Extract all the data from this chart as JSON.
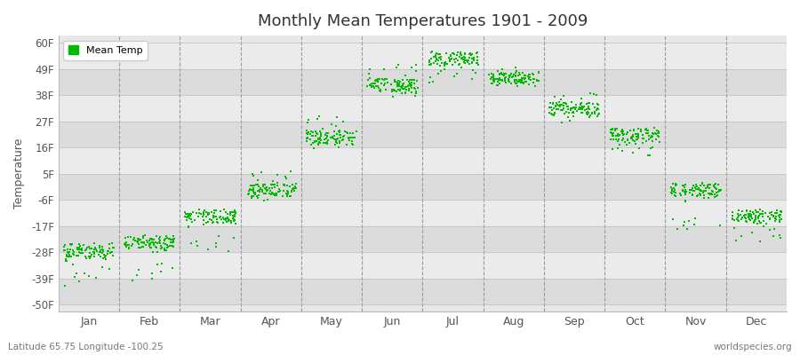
{
  "title": "Monthly Mean Temperatures 1901 - 2009",
  "ylabel": "Temperature",
  "subtitle": "Latitude 65.75 Longitude -100.25",
  "watermark": "worldspecies.org",
  "ytick_labels": [
    "60F",
    "49F",
    "38F",
    "27F",
    "16F",
    "5F",
    "-6F",
    "-17F",
    "-28F",
    "-39F",
    "-50F"
  ],
  "ytick_values": [
    60,
    49,
    38,
    27,
    16,
    5,
    -6,
    -17,
    -28,
    -39,
    -50
  ],
  "ylim": [
    -53,
    63
  ],
  "xlim": [
    0,
    12
  ],
  "months": [
    "Jan",
    "Feb",
    "Mar",
    "Apr",
    "May",
    "Jun",
    "Jul",
    "Aug",
    "Sep",
    "Oct",
    "Nov",
    "Dec"
  ],
  "dot_color": "#00BB00",
  "dot_size": 4,
  "background_color": "#FFFFFF",
  "plot_bg_color": "#E8E8E8",
  "band_color_light": "#EBEBEB",
  "band_color_dark": "#DCDCDC",
  "legend_color": "#00BB00",
  "mean_temps_C": {
    "Jan": [
      -33.3,
      -31.1,
      -32.8,
      -33.9,
      -31.7,
      -34.4,
      -35.6,
      -33.3,
      -31.1,
      -32.5,
      -32.0,
      -34.2,
      -35.0,
      -33.3,
      -36.1,
      -32.8,
      -31.4,
      -33.6,
      -34.4,
      -33.9,
      -33.3,
      -31.4,
      -32.2,
      -32.8,
      -34.7,
      -33.3,
      -33.9,
      -32.5,
      -33.3,
      -35.0,
      -32.8,
      -31.7,
      -33.9,
      -33.3,
      -32.2,
      -34.4,
      -32.5,
      -33.6,
      -33.9,
      -32.5,
      -33.3,
      -34.4,
      -32.8,
      -31.4,
      -34.2,
      -33.3,
      -32.2,
      -34.7,
      -32.5,
      -33.6,
      -34.2,
      -32.8,
      -33.3,
      -32.5,
      -34.4,
      -33.3,
      -32.8,
      -33.9,
      -35.3,
      -33.3,
      -31.7,
      -32.8,
      -33.9,
      -33.6,
      -32.2,
      -34.4,
      -32.5,
      -33.9,
      -33.3,
      -32.5,
      -34.7,
      -33.3,
      -32.8,
      -34.2,
      -31.9,
      -33.3,
      -32.2,
      -34.4,
      -32.5,
      -33.9,
      -33.6,
      -32.2,
      -32.8,
      -34.4,
      -33.3,
      -31.9,
      -34.2,
      -32.8,
      -33.3,
      -32.5,
      -34.4,
      -33.3,
      -32.5,
      -33.9,
      -33.6,
      -32.2,
      -34.7,
      -32.8,
      -31.7,
      -33.3,
      -41.1,
      -39.4,
      -40.3,
      -38.9,
      -37.2,
      -38.3,
      -38.1,
      -36.7,
      -39.2
    ],
    "Feb": [
      -33.3,
      -32.2,
      -31.1,
      -33.3,
      -31.7,
      -29.4,
      -30.0,
      -30.6,
      -31.9,
      -31.1,
      -30.3,
      -32.2,
      -32.8,
      -30.6,
      -31.7,
      -31.4,
      -30.0,
      -32.5,
      -31.4,
      -31.7,
      -31.1,
      -30.3,
      -31.1,
      -31.9,
      -30.6,
      -32.2,
      -31.4,
      -30.3,
      -31.7,
      -30.8,
      -29.7,
      -31.9,
      -30.6,
      -31.1,
      -30.0,
      -32.2,
      -31.4,
      -30.6,
      -31.9,
      -30.3,
      -31.1,
      -32.2,
      -30.8,
      -30.0,
      -31.7,
      -31.1,
      -30.3,
      -32.2,
      -31.1,
      -30.8,
      -31.9,
      -30.3,
      -31.4,
      -30.0,
      -32.2,
      -31.1,
      -30.3,
      -31.9,
      -30.6,
      -31.1,
      -29.7,
      -30.8,
      -31.9,
      -31.1,
      -30.0,
      -32.5,
      -30.6,
      -31.7,
      -31.1,
      -30.3,
      -32.2,
      -31.4,
      -30.0,
      -31.9,
      -29.7,
      -31.1,
      -30.0,
      -32.2,
      -31.4,
      -30.6,
      -31.9,
      -30.0,
      -30.8,
      -32.2,
      -31.1,
      -29.7,
      -31.9,
      -30.6,
      -31.4,
      -30.3,
      -32.5,
      -31.1,
      -30.6,
      -31.7,
      -31.4,
      -30.0,
      -32.8,
      -30.8,
      -29.4,
      -31.4,
      -40.0,
      -38.6,
      -39.4,
      -37.8,
      -36.4,
      -37.5,
      -37.0,
      -35.8,
      -38.3
    ],
    "Mar": [
      -27.2,
      -26.1,
      -25.0,
      -27.5,
      -25.6,
      -23.6,
      -24.2,
      -24.4,
      -25.8,
      -25.0,
      -23.9,
      -26.4,
      -26.7,
      -24.4,
      -25.6,
      -25.3,
      -23.9,
      -26.4,
      -24.7,
      -25.6,
      -25.0,
      -24.2,
      -25.0,
      -25.8,
      -24.4,
      -26.4,
      -25.3,
      -24.2,
      -25.8,
      -24.7,
      -23.6,
      -25.8,
      -24.4,
      -25.0,
      -23.9,
      -26.1,
      -25.3,
      -24.4,
      -25.8,
      -24.2,
      -25.0,
      -26.1,
      -24.7,
      -23.9,
      -25.6,
      -25.0,
      -24.2,
      -26.1,
      -25.0,
      -24.7,
      -25.8,
      -24.2,
      -25.3,
      -23.9,
      -26.1,
      -25.0,
      -24.2,
      -25.8,
      -24.4,
      -25.0,
      -23.6,
      -24.7,
      -25.8,
      -25.0,
      -23.9,
      -26.4,
      -24.4,
      -25.6,
      -25.0,
      -24.2,
      -26.1,
      -25.3,
      -23.9,
      -25.8,
      -23.6,
      -25.0,
      -23.9,
      -26.1,
      -25.3,
      -24.4,
      -25.8,
      -23.9,
      -24.7,
      -26.1,
      -25.0,
      -23.6,
      -25.8,
      -24.4,
      -25.3,
      -24.2,
      -26.4,
      -25.0,
      -24.4,
      -25.6,
      -25.3,
      -23.9,
      -26.7,
      -24.7,
      -23.3,
      -25.3,
      -33.3,
      -31.9,
      -32.8,
      -31.4,
      -30.0,
      -31.1,
      -30.8,
      -29.7,
      -32.2
    ],
    "Apr": [
      -21.1,
      -20.0,
      -18.9,
      -21.4,
      -19.4,
      -17.5,
      -18.1,
      -18.3,
      -19.7,
      -18.9,
      -17.8,
      -20.3,
      -20.6,
      -18.3,
      -19.4,
      -19.2,
      -17.8,
      -20.3,
      -18.6,
      -19.4,
      -18.9,
      -17.8,
      -18.9,
      -19.7,
      -18.3,
      -20.3,
      -19.2,
      -17.8,
      -19.7,
      -18.6,
      -17.5,
      -19.7,
      -18.3,
      -18.9,
      -17.8,
      -20.0,
      -19.2,
      -18.3,
      -19.7,
      -17.5,
      -18.9,
      -20.0,
      -18.6,
      -17.8,
      -19.4,
      -18.9,
      -17.5,
      -20.0,
      -18.9,
      -18.6,
      -19.7,
      -17.5,
      -19.2,
      -17.8,
      -20.0,
      -18.9,
      -17.5,
      -19.7,
      -18.3,
      -18.9,
      -17.5,
      -18.6,
      -19.7,
      -18.9,
      -17.8,
      -20.3,
      -18.3,
      -19.4,
      -18.9,
      -17.5,
      -20.0,
      -19.2,
      -17.8,
      -19.7,
      -17.5,
      -18.9,
      -17.8,
      -20.0,
      -19.2,
      -18.3,
      -19.7,
      -17.8,
      -18.6,
      -20.0,
      -18.9,
      -17.5,
      -19.7,
      -18.3,
      -19.2,
      -17.5,
      -20.3,
      -18.9,
      -18.3,
      -19.4,
      -19.2,
      -17.8,
      -20.6,
      -18.6,
      -17.2,
      -19.2,
      -15.0,
      -16.1,
      -15.3,
      -16.7,
      -14.4,
      -15.8,
      -15.6,
      -14.7,
      -16.4
    ],
    "May": [
      -8.9,
      -7.8,
      -6.7,
      -9.2,
      -7.2,
      -5.3,
      -5.8,
      -5.6,
      -7.0,
      -6.1,
      -5.0,
      -8.1,
      -8.3,
      -6.1,
      -7.2,
      -7.0,
      -5.0,
      -8.1,
      -6.4,
      -7.2,
      -6.7,
      -5.6,
      -6.7,
      -7.5,
      -6.1,
      -8.1,
      -7.0,
      -5.6,
      -7.5,
      -6.4,
      -5.3,
      -7.5,
      -6.1,
      -6.7,
      -5.6,
      -7.8,
      -7.0,
      -6.1,
      -7.5,
      -5.3,
      -6.7,
      -7.8,
      -6.4,
      -5.6,
      -7.2,
      -6.7,
      -5.3,
      -7.8,
      -6.7,
      -6.4,
      -7.5,
      -5.3,
      -7.0,
      -5.6,
      -7.8,
      -6.7,
      -5.3,
      -7.5,
      -6.1,
      -6.7,
      -5.3,
      -6.4,
      -7.5,
      -6.7,
      -5.6,
      -8.1,
      -6.1,
      -7.2,
      -6.7,
      -5.3,
      -7.8,
      -7.0,
      -5.6,
      -7.5,
      -5.3,
      -6.7,
      -5.6,
      -7.8,
      -7.0,
      -6.1,
      -7.5,
      -5.6,
      -6.4,
      -7.8,
      -6.7,
      -5.3,
      -7.5,
      -6.1,
      -7.0,
      -5.6,
      -8.1,
      -6.7,
      -6.1,
      -7.2,
      -7.0,
      -5.6,
      -8.3,
      -6.4,
      -5.0,
      -6.7,
      -2.8,
      -2.2,
      -3.1,
      -1.7,
      -3.9,
      -2.5,
      -3.3,
      -2.0,
      -4.4
    ],
    "Jun": [
      3.3,
      4.4,
      5.6,
      3.1,
      5.0,
      6.9,
      6.4,
      6.7,
      5.3,
      6.1,
      7.2,
      4.2,
      3.9,
      6.1,
      5.0,
      5.3,
      7.2,
      4.2,
      5.8,
      5.0,
      5.6,
      6.9,
      5.6,
      4.7,
      6.1,
      4.2,
      5.3,
      6.9,
      4.7,
      5.8,
      6.9,
      4.7,
      6.1,
      5.6,
      6.7,
      4.4,
      5.3,
      6.1,
      4.7,
      6.9,
      6.1,
      4.4,
      5.8,
      6.7,
      5.0,
      5.6,
      6.9,
      4.4,
      6.1,
      5.8,
      4.7,
      6.9,
      5.3,
      6.7,
      4.4,
      6.1,
      6.9,
      4.7,
      6.1,
      5.6,
      6.9,
      5.8,
      4.7,
      5.6,
      6.7,
      3.9,
      6.1,
      5.0,
      5.6,
      6.9,
      4.4,
      5.3,
      6.7,
      4.7,
      6.9,
      5.6,
      6.7,
      4.4,
      5.3,
      6.1,
      4.7,
      6.7,
      5.8,
      4.4,
      5.6,
      6.9,
      4.7,
      6.1,
      5.3,
      6.7,
      3.9,
      5.6,
      6.1,
      5.0,
      5.3,
      6.7,
      3.9,
      5.8,
      7.2,
      5.3,
      9.4,
      10.0,
      9.2,
      10.6,
      8.3,
      9.7,
      8.9,
      10.3,
      7.8
    ],
    "Jul": [
      9.4,
      10.6,
      11.7,
      9.2,
      11.1,
      13.1,
      12.5,
      12.8,
      11.4,
      12.2,
      13.3,
      10.3,
      10.0,
      12.2,
      11.1,
      11.4,
      13.3,
      10.3,
      11.9,
      11.1,
      11.7,
      13.1,
      11.7,
      10.8,
      12.2,
      10.3,
      11.4,
      13.1,
      10.8,
      11.9,
      13.1,
      10.8,
      12.2,
      11.7,
      12.8,
      10.6,
      11.4,
      12.2,
      10.8,
      13.1,
      12.2,
      10.6,
      11.9,
      12.8,
      11.1,
      11.7,
      13.1,
      10.6,
      12.2,
      11.9,
      10.8,
      13.1,
      11.4,
      12.8,
      10.6,
      12.2,
      13.1,
      10.8,
      12.2,
      11.7,
      13.1,
      11.9,
      10.8,
      11.7,
      12.8,
      10.3,
      12.2,
      11.1,
      11.7,
      13.1,
      10.6,
      11.4,
      12.8,
      10.8,
      13.1,
      11.7,
      12.8,
      10.6,
      11.4,
      12.2,
      10.8,
      12.8,
      11.9,
      10.6,
      11.7,
      13.1,
      10.8,
      12.2,
      11.4,
      12.8,
      10.3,
      11.7,
      12.2,
      11.1,
      11.4,
      12.8,
      10.0,
      11.9,
      13.3,
      11.4,
      8.3,
      7.2,
      8.1,
      6.7,
      8.9,
      7.5,
      7.8,
      8.6,
      6.4
    ],
    "Aug": [
      9.4,
      8.3,
      7.2,
      9.7,
      7.8,
      6.4,
      6.9,
      6.7,
      7.5,
      6.7,
      5.6,
      8.6,
      8.9,
      6.7,
      7.8,
      7.5,
      5.6,
      8.6,
      6.9,
      7.8,
      7.2,
      6.1,
      7.2,
      8.1,
      6.7,
      8.6,
      7.5,
      6.1,
      8.1,
      6.9,
      6.4,
      8.1,
      6.7,
      7.2,
      6.1,
      8.3,
      7.5,
      6.7,
      8.1,
      6.4,
      6.7,
      8.3,
      6.9,
      6.1,
      7.8,
      7.2,
      6.4,
      8.3,
      7.2,
      6.9,
      8.1,
      6.4,
      6.9,
      6.1,
      8.3,
      7.2,
      6.4,
      8.1,
      6.7,
      7.2,
      6.4,
      6.9,
      8.1,
      7.2,
      6.1,
      8.6,
      6.7,
      7.8,
      7.2,
      6.4,
      8.3,
      7.5,
      6.1,
      8.1,
      6.4,
      7.2,
      6.1,
      8.3,
      7.5,
      6.7,
      8.1,
      6.1,
      6.9,
      8.3,
      7.2,
      6.4,
      8.1,
      6.7,
      7.5,
      6.1,
      8.6,
      7.2,
      6.7,
      7.8,
      7.5,
      6.1,
      8.9,
      6.9,
      5.6,
      7.5,
      6.7,
      7.8,
      7.2,
      8.3,
      6.4,
      7.5,
      6.9,
      8.1,
      5.6
    ],
    "Sep": [
      -2.8,
      -1.7,
      -0.6,
      -3.1,
      -1.1,
      0.8,
      0.3,
      0.6,
      -0.8,
      0.0,
      1.1,
      -1.9,
      -1.7,
      0.6,
      -0.6,
      -0.3,
      1.7,
      -0.8,
      0.3,
      -0.6,
      0.0,
      1.4,
      0.0,
      -0.8,
      0.6,
      -0.8,
      0.3,
      1.4,
      -0.8,
      0.3,
      1.4,
      -0.8,
      0.6,
      0.0,
      1.1,
      -1.1,
      0.3,
      0.6,
      -0.8,
      1.4,
      0.6,
      -1.1,
      0.3,
      1.1,
      0.0,
      0.0,
      1.4,
      -1.1,
      0.6,
      0.3,
      -0.8,
      1.4,
      0.0,
      1.1,
      -1.1,
      0.6,
      1.4,
      -0.8,
      0.6,
      0.0,
      1.4,
      0.3,
      -0.8,
      0.0,
      1.1,
      -1.4,
      0.6,
      -0.6,
      0.0,
      1.4,
      -1.1,
      0.0,
      1.1,
      -0.8,
      1.4,
      0.0,
      1.1,
      -1.1,
      0.0,
      0.6,
      -0.8,
      1.1,
      0.3,
      -1.1,
      0.0,
      1.4,
      -0.8,
      0.6,
      0.0,
      1.1,
      -1.4,
      0.0,
      0.6,
      -0.6,
      0.0,
      1.1,
      -1.7,
      0.3,
      1.7,
      0.0,
      3.3,
      2.2,
      2.8,
      1.7,
      3.6,
      2.5,
      3.1,
      3.9,
      1.4
    ],
    "Oct": [
      -8.9,
      -7.8,
      -6.7,
      -9.2,
      -7.2,
      -5.3,
      -5.8,
      -5.6,
      -7.0,
      -6.1,
      -5.0,
      -8.1,
      -7.8,
      -5.6,
      -6.7,
      -6.4,
      -4.4,
      -7.5,
      -6.1,
      -6.7,
      -6.1,
      -4.7,
      -6.1,
      -7.0,
      -5.6,
      -7.5,
      -6.4,
      -4.7,
      -6.9,
      -5.8,
      -4.7,
      -6.9,
      -5.6,
      -6.1,
      -5.0,
      -7.2,
      -6.4,
      -5.6,
      -6.9,
      -4.7,
      -5.6,
      -7.2,
      -5.8,
      -5.0,
      -6.7,
      -6.1,
      -4.7,
      -7.2,
      -5.6,
      -5.8,
      -6.9,
      -4.7,
      -6.4,
      -5.0,
      -7.2,
      -5.6,
      -4.7,
      -6.9,
      -5.6,
      -6.1,
      -4.7,
      -5.8,
      -6.9,
      -6.1,
      -5.0,
      -7.5,
      -5.6,
      -6.7,
      -6.1,
      -4.7,
      -7.2,
      -6.4,
      -5.0,
      -6.9,
      -4.7,
      -6.1,
      -5.0,
      -7.2,
      -6.4,
      -5.6,
      -6.9,
      -5.0,
      -5.8,
      -7.2,
      -6.1,
      -4.7,
      -6.9,
      -5.6,
      -6.4,
      -5.0,
      -7.5,
      -6.1,
      -5.6,
      -6.7,
      -6.4,
      -5.0,
      -7.8,
      -5.8,
      -4.4,
      -5.8,
      -8.9,
      -10.0,
      -9.4,
      -10.6,
      -8.3,
      -9.7,
      -9.2,
      -8.3,
      -10.8
    ],
    "Nov": [
      -21.1,
      -20.0,
      -18.9,
      -21.4,
      -19.4,
      -17.5,
      -18.1,
      -18.3,
      -19.7,
      -18.9,
      -17.8,
      -20.3,
      -20.6,
      -18.3,
      -19.4,
      -19.2,
      -17.8,
      -20.3,
      -18.6,
      -19.4,
      -18.9,
      -17.8,
      -18.9,
      -19.7,
      -18.3,
      -20.3,
      -19.2,
      -17.8,
      -19.7,
      -18.6,
      -17.5,
      -19.7,
      -18.3,
      -18.9,
      -17.8,
      -20.0,
      -19.2,
      -18.3,
      -19.7,
      -17.5,
      -18.9,
      -20.0,
      -18.6,
      -17.8,
      -19.4,
      -18.9,
      -17.5,
      -20.0,
      -18.9,
      -18.6,
      -19.7,
      -17.5,
      -19.2,
      -17.8,
      -20.0,
      -18.9,
      -17.5,
      -19.7,
      -18.3,
      -18.9,
      -17.5,
      -18.6,
      -19.7,
      -18.9,
      -17.8,
      -20.3,
      -18.3,
      -19.4,
      -18.9,
      -17.5,
      -20.0,
      -19.2,
      -17.8,
      -19.7,
      -17.5,
      -18.9,
      -17.8,
      -20.0,
      -19.2,
      -18.3,
      -19.7,
      -17.8,
      -18.6,
      -20.0,
      -18.9,
      -17.5,
      -19.7,
      -18.3,
      -19.2,
      -17.5,
      -20.3,
      -18.9,
      -18.3,
      -19.4,
      -19.2,
      -17.8,
      -20.6,
      -18.6,
      -17.2,
      -19.2,
      -27.2,
      -26.1,
      -26.7,
      -25.6,
      -27.8,
      -26.4,
      -27.0,
      -27.8,
      -25.3
    ],
    "Dec": [
      -27.2,
      -26.1,
      -25.0,
      -27.5,
      -25.6,
      -23.6,
      -24.2,
      -24.4,
      -25.8,
      -25.0,
      -23.9,
      -26.4,
      -26.7,
      -24.4,
      -25.6,
      -25.3,
      -23.9,
      -26.4,
      -24.7,
      -25.6,
      -25.0,
      -24.2,
      -25.0,
      -25.8,
      -24.4,
      -26.4,
      -25.3,
      -24.2,
      -25.8,
      -24.7,
      -23.6,
      -25.8,
      -24.4,
      -25.0,
      -23.9,
      -26.1,
      -25.3,
      -24.4,
      -25.8,
      -24.2,
      -25.0,
      -26.1,
      -24.7,
      -23.9,
      -25.6,
      -25.0,
      -24.2,
      -26.1,
      -25.0,
      -24.7,
      -25.8,
      -24.2,
      -25.3,
      -23.9,
      -26.1,
      -25.0,
      -24.2,
      -25.8,
      -24.4,
      -25.0,
      -23.6,
      -24.7,
      -25.8,
      -25.0,
      -23.9,
      -26.4,
      -24.4,
      -25.6,
      -25.0,
      -24.2,
      -26.1,
      -25.3,
      -23.9,
      -25.8,
      -23.6,
      -25.0,
      -23.9,
      -26.1,
      -25.3,
      -24.4,
      -25.8,
      -23.9,
      -24.7,
      -26.1,
      -25.0,
      -23.6,
      -25.8,
      -24.4,
      -25.3,
      -24.2,
      -26.4,
      -25.0,
      -24.4,
      -25.6,
      -25.3,
      -23.9,
      -26.7,
      -24.7,
      -23.3,
      -25.3,
      -30.0,
      -28.9,
      -29.4,
      -28.3,
      -30.6,
      -29.2,
      -29.7,
      -30.6,
      -27.8
    ]
  }
}
